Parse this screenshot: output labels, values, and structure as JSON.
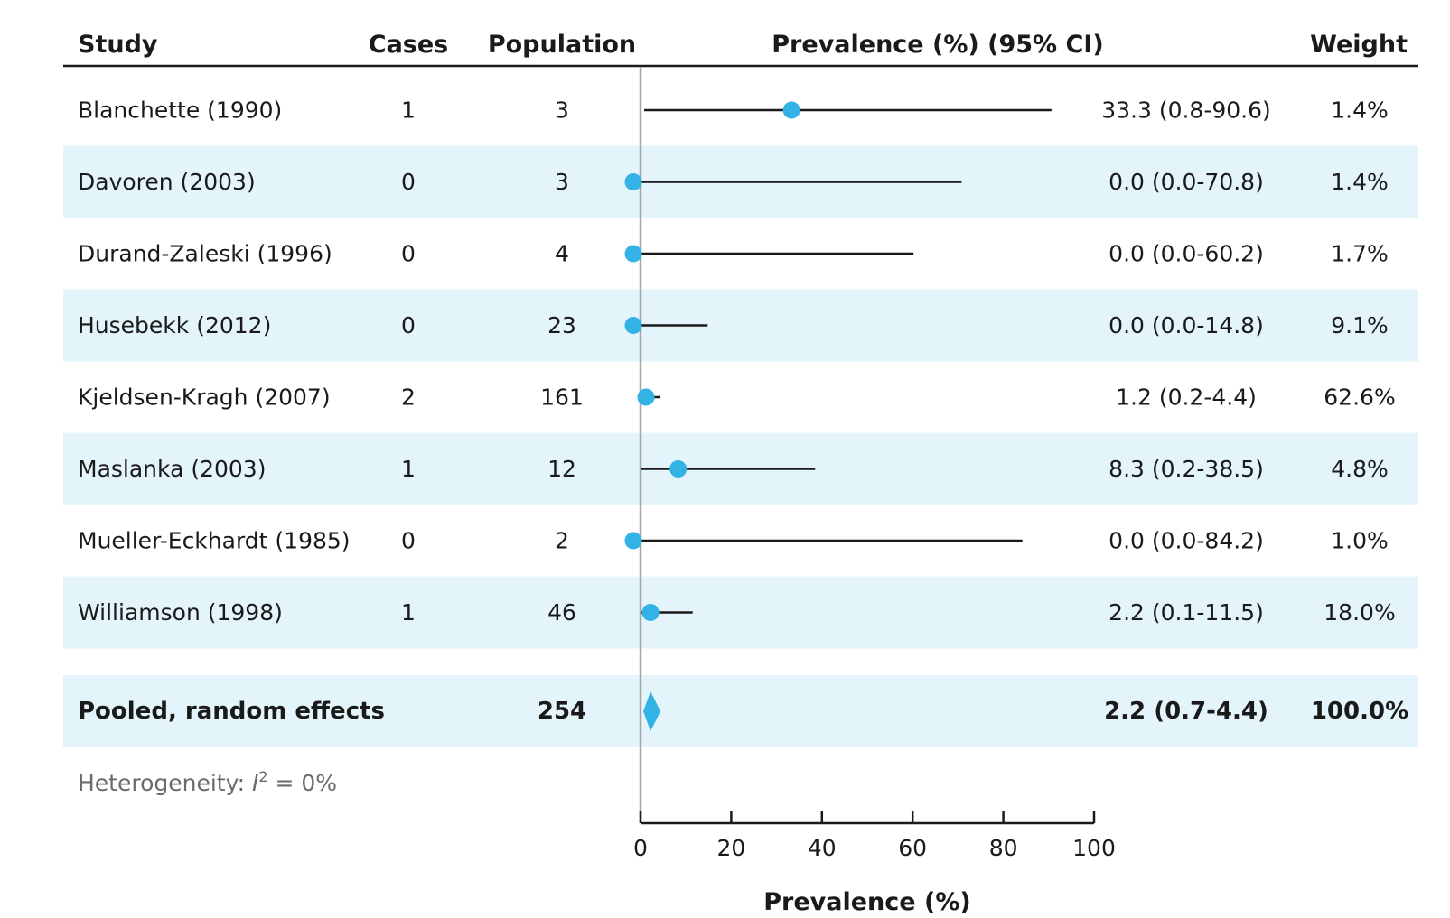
{
  "chart_data": {
    "type": "forest",
    "headers": {
      "study": "Study",
      "cases": "Cases",
      "population": "Population",
      "prevalence": "Prevalence (%) (95% CI)",
      "weight": "Weight"
    },
    "rows": [
      {
        "study": "Blanchette (1990)",
        "cases": "1",
        "population": "3",
        "estimate": 33.3,
        "lower": 0.8,
        "upper": 90.6,
        "ci_text": "33.3 (0.8-90.6)",
        "weight": "1.4%"
      },
      {
        "study": "Davoren (2003)",
        "cases": "0",
        "population": "3",
        "estimate": 0.0,
        "lower": 0.0,
        "upper": 70.8,
        "ci_text": "0.0 (0.0-70.8)",
        "weight": "1.4%"
      },
      {
        "study": "Durand-Zaleski (1996)",
        "cases": "0",
        "population": "4",
        "estimate": 0.0,
        "lower": 0.0,
        "upper": 60.2,
        "ci_text": "0.0 (0.0-60.2)",
        "weight": "1.7%"
      },
      {
        "study": "Husebekk (2012)",
        "cases": "0",
        "population": "23",
        "estimate": 0.0,
        "lower": 0.0,
        "upper": 14.8,
        "ci_text": "0.0 (0.0-14.8)",
        "weight": "9.1%"
      },
      {
        "study": "Kjeldsen-Kragh (2007)",
        "cases": "2",
        "population": "161",
        "estimate": 1.2,
        "lower": 0.2,
        "upper": 4.4,
        "ci_text": "1.2 (0.2-4.4)",
        "weight": "62.6%"
      },
      {
        "study": "Maslanka (2003)",
        "cases": "1",
        "population": "12",
        "estimate": 8.3,
        "lower": 0.2,
        "upper": 38.5,
        "ci_text": "8.3 (0.2-38.5)",
        "weight": "4.8%"
      },
      {
        "study": "Mueller-Eckhardt (1985)",
        "cases": "0",
        "population": "2",
        "estimate": 0.0,
        "lower": 0.0,
        "upper": 84.2,
        "ci_text": "0.0 (0.0-84.2)",
        "weight": "1.0%"
      },
      {
        "study": "Williamson (1998)",
        "cases": "1",
        "population": "46",
        "estimate": 2.2,
        "lower": 0.1,
        "upper": 11.5,
        "ci_text": "2.2 (0.1-11.5)",
        "weight": "18.0%"
      }
    ],
    "pooled": {
      "label": "Pooled, random effects",
      "population": "254",
      "estimate": 2.2,
      "lower": 0.7,
      "upper": 4.4,
      "ci_text": "2.2 (0.7-4.4)",
      "weight": "100.0%"
    },
    "heterogeneity": {
      "prefix": "Heterogeneity: ",
      "symbol": "I",
      "superscript": "2",
      "suffix": " = 0%"
    },
    "x_ticks": [
      0,
      20,
      40,
      60,
      80,
      100
    ],
    "xlim": [
      0,
      100
    ],
    "xlabel": "Prevalence (%)",
    "colors": {
      "marker": "#33b3e5",
      "stripe": "#e3f4fb",
      "line": "#1a1a1a",
      "reference": "#a6a6a6"
    }
  }
}
